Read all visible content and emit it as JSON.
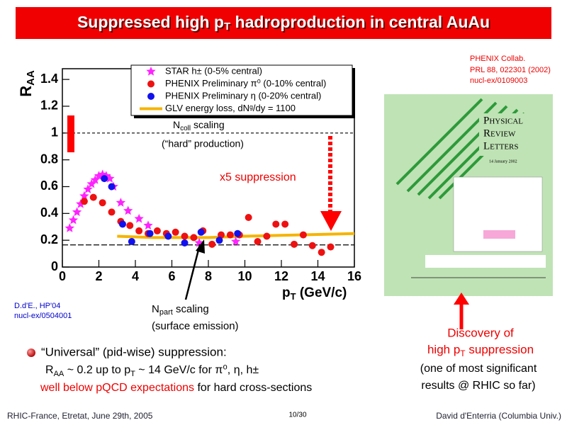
{
  "header": {
    "title": [
      "Suppressed high p",
      "T",
      " hadroproduction in central AuAu"
    ]
  },
  "chart_data": {
    "type": "scatter",
    "xlabel": [
      "p",
      "T",
      " (GeV/c)"
    ],
    "ylabel": [
      "R",
      "AA"
    ],
    "xlim": [
      0,
      16
    ],
    "ylim": [
      0,
      1.48
    ],
    "xticks": [
      0,
      2,
      4,
      6,
      8,
      10,
      12,
      14,
      16
    ],
    "yticks": [
      0,
      0.2,
      0.4,
      0.6,
      0.8,
      1,
      1.2,
      1.4
    ],
    "hlines": [
      1,
      0.165
    ],
    "legend": "top-right",
    "series": [
      {
        "name": "STAR h± (0-5% central)",
        "color": "#ff22ff",
        "marker": "star",
        "x": [
          0.4,
          0.6,
          0.8,
          1.0,
          1.2,
          1.4,
          1.6,
          1.8,
          2.0,
          2.2,
          2.4,
          2.6,
          2.8,
          3.2,
          3.6,
          4.2,
          4.7,
          7.5,
          9.5
        ],
        "values": [
          0.29,
          0.35,
          0.41,
          0.47,
          0.53,
          0.58,
          0.62,
          0.65,
          0.68,
          0.69,
          0.68,
          0.66,
          0.6,
          0.48,
          0.42,
          0.36,
          0.31,
          0.18,
          0.19
        ]
      },
      {
        "name": "PHENIX Preliminary π⁰ (0-10% central)",
        "color": "#ee1111",
        "marker": "circle",
        "x": [
          1.2,
          1.7,
          2.2,
          2.7,
          3.2,
          3.7,
          4.2,
          4.7,
          5.2,
          5.7,
          6.2,
          6.7,
          7.2,
          7.7,
          8.2,
          8.7,
          9.2,
          9.7,
          10.2,
          10.7,
          11.2,
          11.7,
          12.2,
          12.7,
          13.2,
          13.7,
          14.2,
          14.7
        ],
        "values": [
          0.49,
          0.52,
          0.48,
          0.41,
          0.34,
          0.31,
          0.27,
          0.25,
          0.27,
          0.25,
          0.26,
          0.23,
          0.22,
          0.27,
          0.17,
          0.24,
          0.24,
          0.24,
          0.37,
          0.19,
          0.23,
          0.32,
          0.32,
          0.17,
          0.24,
          0.16,
          0.11,
          0.15
        ]
      },
      {
        "name": "PHENIX Preliminary η (0-20% central)",
        "color": "#1111ee",
        "marker": "circle",
        "x": [
          2.3,
          2.7,
          3.3,
          3.8,
          4.8,
          5.8,
          6.7,
          7.6,
          8.6,
          9.6
        ],
        "values": [
          0.66,
          0.6,
          0.32,
          0.19,
          0.25,
          0.23,
          0.18,
          0.26,
          0.2,
          0.25
        ]
      },
      {
        "name": "GLV energy loss, dNᵍ/dy = 1100",
        "color": "#f5b400",
        "marker": "line",
        "x": [
          3,
          5,
          8,
          10,
          13,
          16
        ],
        "values": [
          0.23,
          0.22,
          0.22,
          0.23,
          0.24,
          0.25
        ]
      }
    ],
    "annotations": {
      "ncoll": [
        "N",
        "coll",
        " scaling"
      ],
      "hard": "(“hard” production)",
      "suppression": "x5 suppression",
      "npart": [
        "N",
        "part",
        " scaling"
      ],
      "surface": "(surface emission)"
    }
  },
  "references": {
    "prl": [
      "PHENIX Collab.",
      "PRL 88, 022301 (2002)",
      "nucl-ex/0109003"
    ],
    "hp": [
      "D.d'E., HP'04",
      "nucl-ex/0504001"
    ]
  },
  "cover": {
    "title": [
      "Physical",
      "Review",
      "Letters"
    ],
    "date": "14 January 2002"
  },
  "discovery": {
    "line1": "Discovery of",
    "line2": [
      "high p",
      "T",
      " suppression"
    ],
    "line3": "(one of most significant",
    "line4": "results @ RHIC so far)"
  },
  "bullet": {
    "line1": "“Universal” (pid-wise) suppression:",
    "line2": [
      "R",
      "AA",
      " ~ 0.2 up to p",
      "T",
      " ~ 14 GeV/c for π⁰, η, h±"
    ],
    "line3": [
      "well below pQCD expectations",
      " for hard cross-sections"
    ]
  },
  "footer": {
    "left": "RHIC-France, Etretat, June 29th, 2005",
    "center": "10/30",
    "right": "David d'Enterria (Columbia Univ.)"
  }
}
